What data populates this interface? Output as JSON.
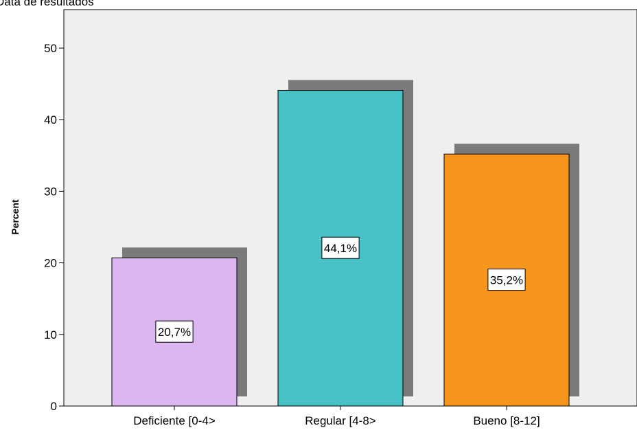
{
  "chart_data": {
    "type": "bar",
    "title": "Data de resultados",
    "xlabel": "",
    "ylabel": "Percent",
    "ylim": [
      0,
      55
    ],
    "yticks": [
      0,
      10,
      20,
      30,
      40,
      50
    ],
    "categories": [
      "Deficiente [0-4>",
      "Regular [4-8>",
      "Bueno [8-12]"
    ],
    "values": [
      20.7,
      44.1,
      35.2
    ],
    "data_labels": [
      "20,7%",
      "44,1%",
      "35,2%"
    ],
    "colors": [
      "#dbb6f0",
      "#47c1c6",
      "#f7961c"
    ],
    "shadow_color": "#7a7a7a",
    "plot_background": "#efefef",
    "grid": false,
    "legend": "none"
  }
}
